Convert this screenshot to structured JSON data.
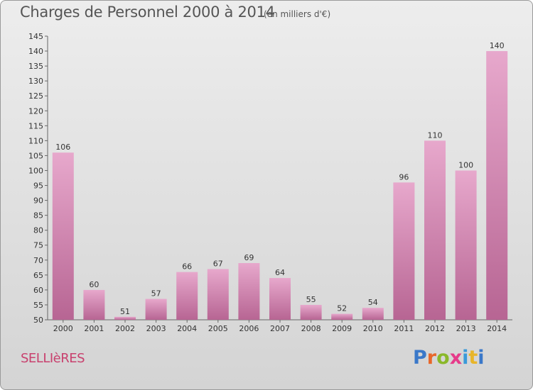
{
  "header": {
    "title": "Charges de Personnel 2000 à 2014",
    "subtitle": "(en milliers d'€)"
  },
  "footer": {
    "commune": "SELLIèRES",
    "brand": "Proxiti",
    "brand_letter_colors": [
      "#3a78c9",
      "#e8672a",
      "#8ab82a",
      "#e63b8a",
      "#3a9ad9",
      "#e8b52a",
      "#3a78c9"
    ]
  },
  "colors": {
    "bar_light": "#e7a8cc",
    "bar_dark": "#b76593",
    "title_text": "#555555",
    "commune_text": "#c8416e"
  },
  "chart_data": {
    "type": "bar",
    "title": "Charges de Personnel 2000 à 2014",
    "subtitle": "(en milliers d'€)",
    "categories": [
      "2000",
      "2001",
      "2002",
      "2003",
      "2004",
      "2005",
      "2006",
      "2007",
      "2008",
      "2009",
      "2010",
      "2011",
      "2012",
      "2013",
      "2014"
    ],
    "values": [
      106,
      60,
      51,
      57,
      66,
      67,
      69,
      64,
      55,
      52,
      54,
      96,
      110,
      100,
      140
    ],
    "data_labels": [
      "106",
      "60",
      "51",
      "57",
      "66",
      "67",
      "69",
      "64",
      "55",
      "52",
      "54",
      "96",
      "110",
      "100",
      "140"
    ],
    "ylim": [
      50,
      145
    ],
    "yticks": [
      50,
      55,
      60,
      65,
      70,
      75,
      80,
      85,
      90,
      95,
      100,
      105,
      110,
      115,
      120,
      125,
      130,
      135,
      140,
      145
    ],
    "grid": false,
    "legend": "none"
  }
}
